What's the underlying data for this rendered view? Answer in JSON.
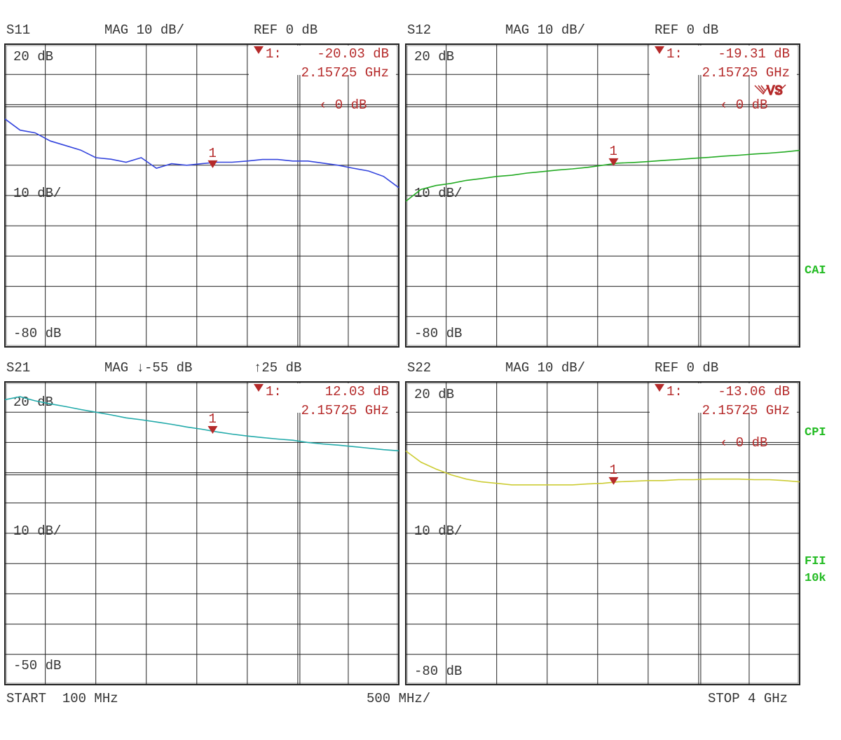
{
  "footer": {
    "start": "START  100 MHz",
    "div": "500 MHz/",
    "stop": "STOP 4 GHz"
  },
  "side_labels": [
    "CAI",
    "CPI",
    "FII",
    "10k"
  ],
  "colors": {
    "text": "#333333",
    "marker": "#b52a2a",
    "side": "#22bb22",
    "grid": "#222222"
  },
  "chart_data": [
    {
      "type": "line",
      "param": "S11",
      "format": "MAG 10 dB/",
      "ref": "REF 0 dB",
      "top_label": "20 dB",
      "mid_label": "10 dB/",
      "bottom_label": "-80 dB",
      "ylim": [
        -80,
        20
      ],
      "xlim_ghz": [
        0.1,
        4.0
      ],
      "grid": true,
      "ref_marker": "‹ 0 dB",
      "color": "#3344dd",
      "marker": {
        "label": "1",
        "readout": "1:",
        "value": "-20.03 dB",
        "freq": "2.15725 GHz",
        "x": 2.15725,
        "y": -20.03
      },
      "x": [
        0.1,
        0.25,
        0.4,
        0.55,
        0.7,
        0.85,
        1.0,
        1.15,
        1.3,
        1.45,
        1.6,
        1.75,
        1.9,
        2.05,
        2.2,
        2.35,
        2.5,
        2.65,
        2.8,
        2.95,
        3.1,
        3.25,
        3.4,
        3.55,
        3.7,
        3.85,
        4.0
      ],
      "y": [
        -4.7,
        -8.4,
        -9.3,
        -12,
        -13.5,
        -15,
        -17.5,
        -18,
        -19,
        -17.5,
        -21,
        -19.5,
        -20,
        -19.5,
        -19,
        -19,
        -18.6,
        -18.1,
        -18.1,
        -18.6,
        -18.6,
        -19.3,
        -20,
        -21,
        -21.9,
        -23.7,
        -27.4
      ]
    },
    {
      "type": "line",
      "param": "S12",
      "format": "MAG 10 dB/",
      "ref": "REF 0 dB",
      "top_label": "20 dB",
      "mid_label": "10 dB/",
      "bottom_label": "-80 dB",
      "ylim": [
        -80,
        20
      ],
      "xlim_ghz": [
        0.1,
        4.0
      ],
      "grid": true,
      "ref_marker": "‹ 0 dB",
      "color": "#22aa22",
      "symbol": "VS",
      "marker": {
        "label": "1",
        "readout": "1:",
        "value": "-19.31 dB",
        "freq": "2.15725 GHz",
        "x": 2.15725,
        "y": -19.31
      },
      "x": [
        0.1,
        0.25,
        0.4,
        0.55,
        0.7,
        0.85,
        1.0,
        1.15,
        1.3,
        1.45,
        1.6,
        1.75,
        1.9,
        2.05,
        2.2,
        2.35,
        2.5,
        2.65,
        2.8,
        2.95,
        3.1,
        3.25,
        3.4,
        3.55,
        3.7,
        3.85,
        4.0
      ],
      "y": [
        -31.9,
        -28,
        -26.7,
        -26,
        -25,
        -24.4,
        -23.7,
        -23.3,
        -22.6,
        -22.1,
        -21.6,
        -21.2,
        -20.7,
        -20,
        -19.3,
        -19.1,
        -18.8,
        -18.4,
        -18.1,
        -17.7,
        -17.4,
        -17,
        -16.7,
        -16.3,
        -16,
        -15.6,
        -15.1
      ]
    },
    {
      "type": "line",
      "param": "S21",
      "format": "MAG ↓-55 dB",
      "ref": "↑25 dB",
      "top_label": "20 dB",
      "mid_label": "10 dB/",
      "bottom_label": "-50 dB",
      "ylim": [
        -55,
        25
      ],
      "xlim_ghz": [
        0.1,
        4.0
      ],
      "grid": true,
      "ref_marker": "",
      "color": "#22aaaa",
      "marker": {
        "label": "1",
        "readout": "1:",
        "value": "12.03 dB",
        "freq": "2.15725 GHz",
        "x": 2.15725,
        "y": 12.03
      },
      "x": [
        0.1,
        0.25,
        0.4,
        0.55,
        0.7,
        0.85,
        1.0,
        1.15,
        1.3,
        1.45,
        1.6,
        1.75,
        1.9,
        2.05,
        2.2,
        2.35,
        2.5,
        2.65,
        2.8,
        2.95,
        3.1,
        3.25,
        3.4,
        3.55,
        3.7,
        3.85,
        4.0
      ],
      "y": [
        20.3,
        21.1,
        20,
        19.2,
        18.5,
        17.7,
        17,
        16.3,
        15.5,
        15,
        14.4,
        13.8,
        13.1,
        12.5,
        11.8,
        11.2,
        10.7,
        10.3,
        9.9,
        9.6,
        9,
        8.6,
        8.3,
        7.9,
        7.5,
        7.1,
        6.8
      ]
    },
    {
      "type": "line",
      "param": "S22",
      "format": "MAG 10 dB/",
      "ref": "REF 0 dB",
      "top_label": "20 dB",
      "mid_label": "10 dB/",
      "bottom_label": "-80 dB",
      "ylim": [
        -80,
        20
      ],
      "xlim_ghz": [
        0.1,
        4.0
      ],
      "grid": true,
      "ref_marker": "‹ 0 dB",
      "color": "#cccc33",
      "marker": {
        "label": "1",
        "readout": "1:",
        "value": "-13.06 dB",
        "freq": "2.15725 GHz",
        "x": 2.15725,
        "y": -13.06
      },
      "x": [
        0.1,
        0.25,
        0.4,
        0.55,
        0.7,
        0.85,
        1.0,
        1.15,
        1.3,
        1.45,
        1.6,
        1.75,
        1.9,
        2.05,
        2.2,
        2.35,
        2.5,
        2.65,
        2.8,
        2.95,
        3.1,
        3.25,
        3.4,
        3.55,
        3.7,
        3.85,
        4.0
      ],
      "y": [
        -2.8,
        -6.5,
        -8.8,
        -10.7,
        -12.1,
        -13,
        -13.5,
        -14,
        -14,
        -14,
        -14,
        -14,
        -13.7,
        -13.5,
        -13,
        -12.8,
        -12.6,
        -12.6,
        -12.3,
        -12.3,
        -12.1,
        -12.1,
        -12.1,
        -12.3,
        -12.3,
        -12.6,
        -13
      ]
    }
  ]
}
